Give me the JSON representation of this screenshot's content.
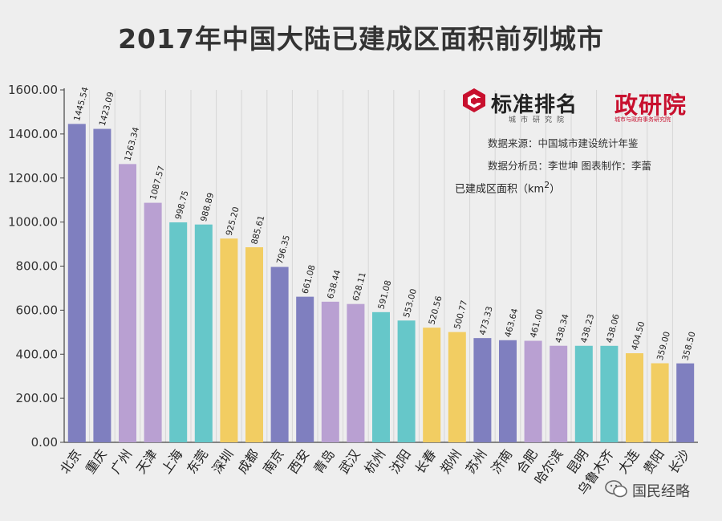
{
  "title": "2017年中国大陆已建成区面积前列城市",
  "logos": {
    "standard_ranking": {
      "name": "标准排名",
      "sub": "城市研究院"
    },
    "zhengyanyuan": {
      "name": "政研院",
      "sub": "城市与政府事务研究院"
    }
  },
  "source": "数据来源：中国城市建设统计年鉴",
  "analyst": "数据分析员：李世坤 图表制作：李蕾",
  "unit_label": {
    "text": "已建成区面积（km",
    "sup": "2",
    "end": "）"
  },
  "watermark": "国民经略",
  "colors": {
    "blue": "#7f7fbf",
    "purple": "#b9a0d2",
    "teal": "#66c7c9",
    "yellow": "#f2cd62",
    "background": "#eeeeee",
    "axis": "#444444",
    "logo_red": "#c8102e"
  },
  "chart_data": {
    "type": "bar",
    "title": "2017年中国大陆已建成区面积前列城市",
    "ylabel": "已建成区面积（km2）",
    "ylim": [
      0,
      1600
    ],
    "yticks": [
      "0.00",
      "200.00",
      "400.00",
      "600.00",
      "800.00",
      "1000.00",
      "1200.00",
      "1400.00",
      "1600.00"
    ],
    "grid": false,
    "categories": [
      "北京",
      "重庆",
      "广州",
      "天津",
      "上海",
      "东莞",
      "深圳",
      "成都",
      "南京",
      "西安",
      "青岛",
      "武汉",
      "杭州",
      "沈阳",
      "长春",
      "郑州",
      "苏州",
      "济南",
      "合肥",
      "哈尔滨",
      "昆明",
      "乌鲁木齐",
      "大连",
      "贵阳",
      "长沙"
    ],
    "values": [
      1445.54,
      1423.09,
      1263.34,
      1087.57,
      998.75,
      988.89,
      925.2,
      885.61,
      796.35,
      661.08,
      638.44,
      628.11,
      591.08,
      553.0,
      520.56,
      500.77,
      473.33,
      463.64,
      461.0,
      438.34,
      438.23,
      438.06,
      404.5,
      359.0,
      358.5
    ],
    "labels": [
      "1445.54",
      "1423.09",
      "1263.34",
      "1087.57",
      "998.75",
      "988.89",
      "925.20",
      "885.61",
      "796.35",
      "661.08",
      "638.44",
      "628.11",
      "591.08",
      "553.00",
      "520.56",
      "500.77",
      "473.33",
      "463.64",
      "461.00",
      "438.34",
      "438.23",
      "438.06",
      "404.50",
      "359.00",
      "358.50"
    ],
    "colors": [
      "blue",
      "blue",
      "purple",
      "purple",
      "teal",
      "teal",
      "yellow",
      "yellow",
      "blue",
      "blue",
      "purple",
      "purple",
      "teal",
      "teal",
      "yellow",
      "yellow",
      "blue",
      "blue",
      "purple",
      "purple",
      "teal",
      "teal",
      "yellow",
      "yellow",
      "blue"
    ]
  }
}
